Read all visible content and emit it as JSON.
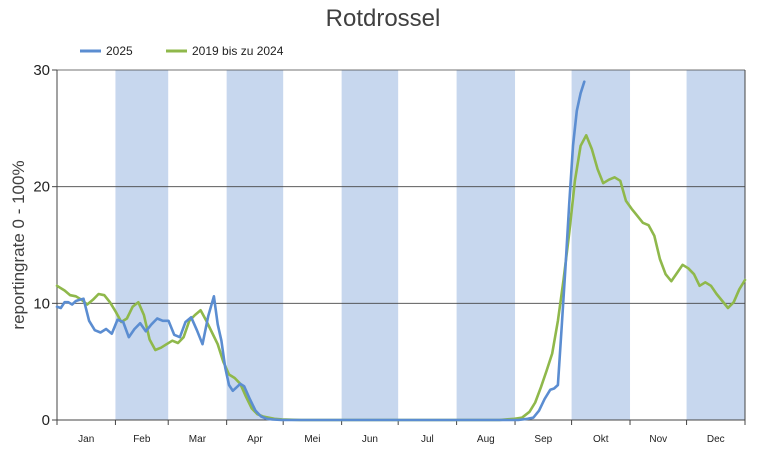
{
  "chart_data": {
    "type": "line",
    "title": "Rotdrossel",
    "xlabel": "",
    "ylabel": "reportingrate 0 - 100%",
    "ylim": [
      0,
      30
    ],
    "yticks": [
      0,
      10,
      20,
      30
    ],
    "grid": true,
    "legend_position": "top-left",
    "months": [
      "Jan",
      "Feb",
      "Mar",
      "Apr",
      "Mei",
      "Jun",
      "Jul",
      "Aug",
      "Sep",
      "Okt",
      "Nov",
      "Dec"
    ],
    "shaded_months": [
      "Feb",
      "Apr",
      "Jun",
      "Aug",
      "Okt",
      "Dec"
    ],
    "shade_color": "#c7d7ee",
    "series": [
      {
        "name": "2025",
        "color": "#5b8dd1",
        "x_day": [
          1,
          3,
          5,
          7,
          9,
          11,
          13,
          15,
          18,
          21,
          24,
          27,
          30,
          33,
          36,
          39,
          42,
          45,
          48,
          51,
          54,
          57,
          60,
          63,
          66,
          69,
          72,
          75,
          78,
          81,
          84,
          86,
          88,
          90,
          92,
          94,
          96,
          98,
          100,
          103,
          106,
          109,
          112,
          115,
          120,
          130,
          140,
          160,
          180,
          200,
          220,
          240,
          245,
          250,
          253,
          256,
          259,
          262,
          264,
          266,
          268,
          270,
          272,
          274,
          276,
          278,
          280
        ],
        "y": [
          9.7,
          9.6,
          10.1,
          10.1,
          9.9,
          10.2,
          10.3,
          10.4,
          8.5,
          7.7,
          7.5,
          7.8,
          7.4,
          8.6,
          8.4,
          7.1,
          7.8,
          8.3,
          7.6,
          8.2,
          8.7,
          8.5,
          8.5,
          7.3,
          7.1,
          8.4,
          8.8,
          7.7,
          6.5,
          8.9,
          10.6,
          8.2,
          6.8,
          4.5,
          3.0,
          2.5,
          2.8,
          3.1,
          2.9,
          1.8,
          0.8,
          0.3,
          0.1,
          0.05,
          0,
          0,
          0,
          0,
          0,
          0,
          0,
          0,
          0,
          0.1,
          0.2,
          0.8,
          1.8,
          2.6,
          2.7,
          3.0,
          8.0,
          13.0,
          18.5,
          23.5,
          26.5,
          28.0,
          29.0
        ]
      },
      {
        "name": "2019 bis zu 2024",
        "color": "#8fb84b",
        "x_day": [
          1,
          5,
          8,
          11,
          14,
          17,
          20,
          23,
          26,
          29,
          32,
          35,
          38,
          41,
          44,
          47,
          50,
          53,
          56,
          59,
          62,
          65,
          68,
          71,
          74,
          77,
          80,
          83,
          86,
          89,
          92,
          95,
          98,
          101,
          104,
          107,
          110,
          113,
          116,
          120,
          130,
          150,
          180,
          210,
          235,
          243,
          247,
          251,
          254,
          257,
          260,
          263,
          266,
          269,
          272,
          275,
          278,
          281,
          284,
          287,
          290,
          293,
          296,
          299,
          302,
          305,
          308,
          311,
          314,
          317,
          320,
          323,
          326,
          329,
          332,
          335,
          338,
          341,
          344,
          347,
          350,
          353,
          356,
          359,
          362,
          365
        ],
        "y": [
          11.5,
          11.1,
          10.7,
          10.6,
          10.3,
          9.9,
          10.3,
          10.8,
          10.7,
          10.1,
          9.3,
          8.4,
          8.7,
          9.7,
          10.1,
          9.0,
          6.9,
          6.0,
          6.2,
          6.5,
          6.8,
          6.6,
          7.1,
          8.5,
          9.0,
          9.4,
          8.5,
          7.5,
          6.5,
          5.0,
          3.9,
          3.6,
          3.1,
          2.0,
          1.0,
          0.5,
          0.3,
          0.2,
          0.1,
          0.05,
          0,
          0,
          0,
          0,
          0,
          0.1,
          0.2,
          0.7,
          1.5,
          2.8,
          4.2,
          5.7,
          8.5,
          12.0,
          16.0,
          20.5,
          23.5,
          24.4,
          23.2,
          21.5,
          20.3,
          20.6,
          20.8,
          20.5,
          18.8,
          18.1,
          17.5,
          16.9,
          16.7,
          15.8,
          13.8,
          12.5,
          11.9,
          12.6,
          13.3,
          13.0,
          12.5,
          11.5,
          11.8,
          11.5,
          10.8,
          10.2,
          9.6,
          10.1,
          11.2,
          12.0
        ]
      }
    ]
  }
}
